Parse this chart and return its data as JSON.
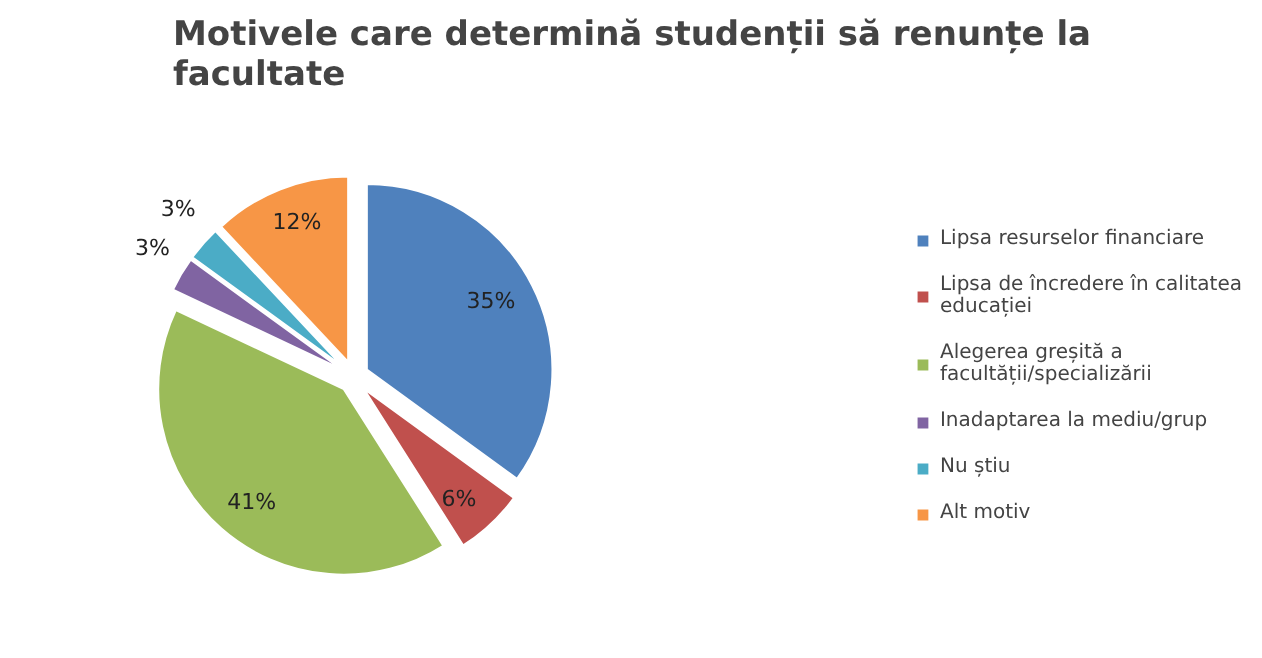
{
  "chart_data": {
    "type": "pie",
    "title": "Motivele care determină studenții să renunțe la facultate",
    "categories": [
      "Lipsa resurselor financiare",
      "Lipsa de încredere în calitatea educației",
      "Alegerea greșită a facultății/specializării",
      "Inadaptarea la mediu/grup",
      "Nu știu",
      "Alt motiv"
    ],
    "values": [
      35,
      6,
      41,
      3,
      3,
      12
    ],
    "value_labels": [
      "35%",
      "6%",
      "41%",
      "3%",
      "3%",
      "12%"
    ],
    "colors": [
      "#4f81bd",
      "#c0504d",
      "#9bbb59",
      "#8064a2",
      "#4bacc6",
      "#f79646"
    ],
    "legend": "right"
  }
}
